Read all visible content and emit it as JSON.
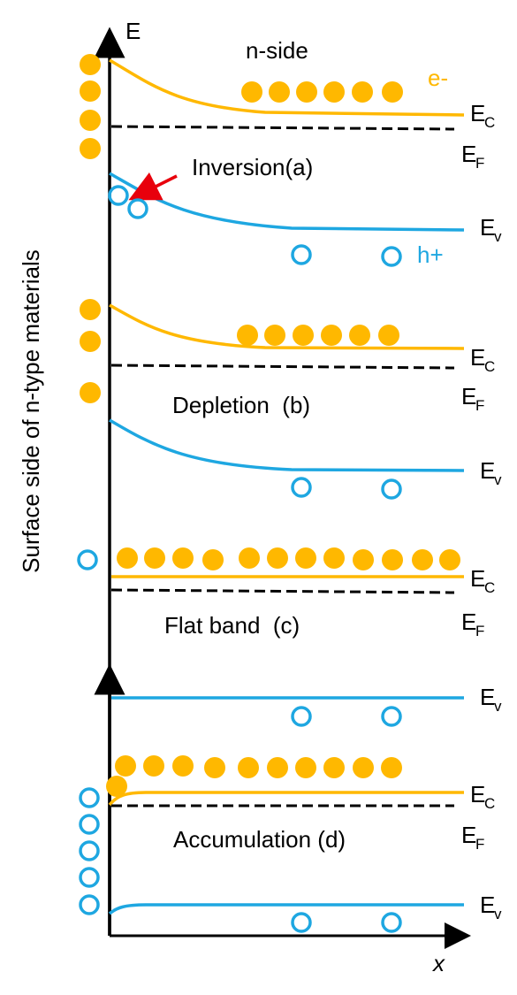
{
  "axes": {
    "y_label": "E",
    "x_label": "x",
    "side_label": "Surface side of n-type materials"
  },
  "colors": {
    "conduction_band": "#FFB800",
    "valence_band": "#1EA7E1",
    "fermi_level": "#000000",
    "electron": "#FFB800",
    "hole": "#1EA7E1",
    "arrow": "#E8000C",
    "axis": "#000000"
  },
  "panels": [
    {
      "id": "a",
      "title": "Inversion(a)",
      "header": "n-side",
      "legend": {
        "electron": "e-",
        "hole": "h+"
      },
      "band_bending": "up"
    },
    {
      "id": "b",
      "title": "Depletion  (b)",
      "band_bending": "up"
    },
    {
      "id": "c",
      "title": "Flat band  (c)",
      "band_bending": "none"
    },
    {
      "id": "d",
      "title": "Accumulation (d)",
      "band_bending": "down"
    }
  ],
  "band_labels": {
    "ec_main": "E",
    "ec_sub": "C",
    "ef_main": "E",
    "ef_sub": "F",
    "ev_main": "E",
    "ev_sub": "v"
  }
}
